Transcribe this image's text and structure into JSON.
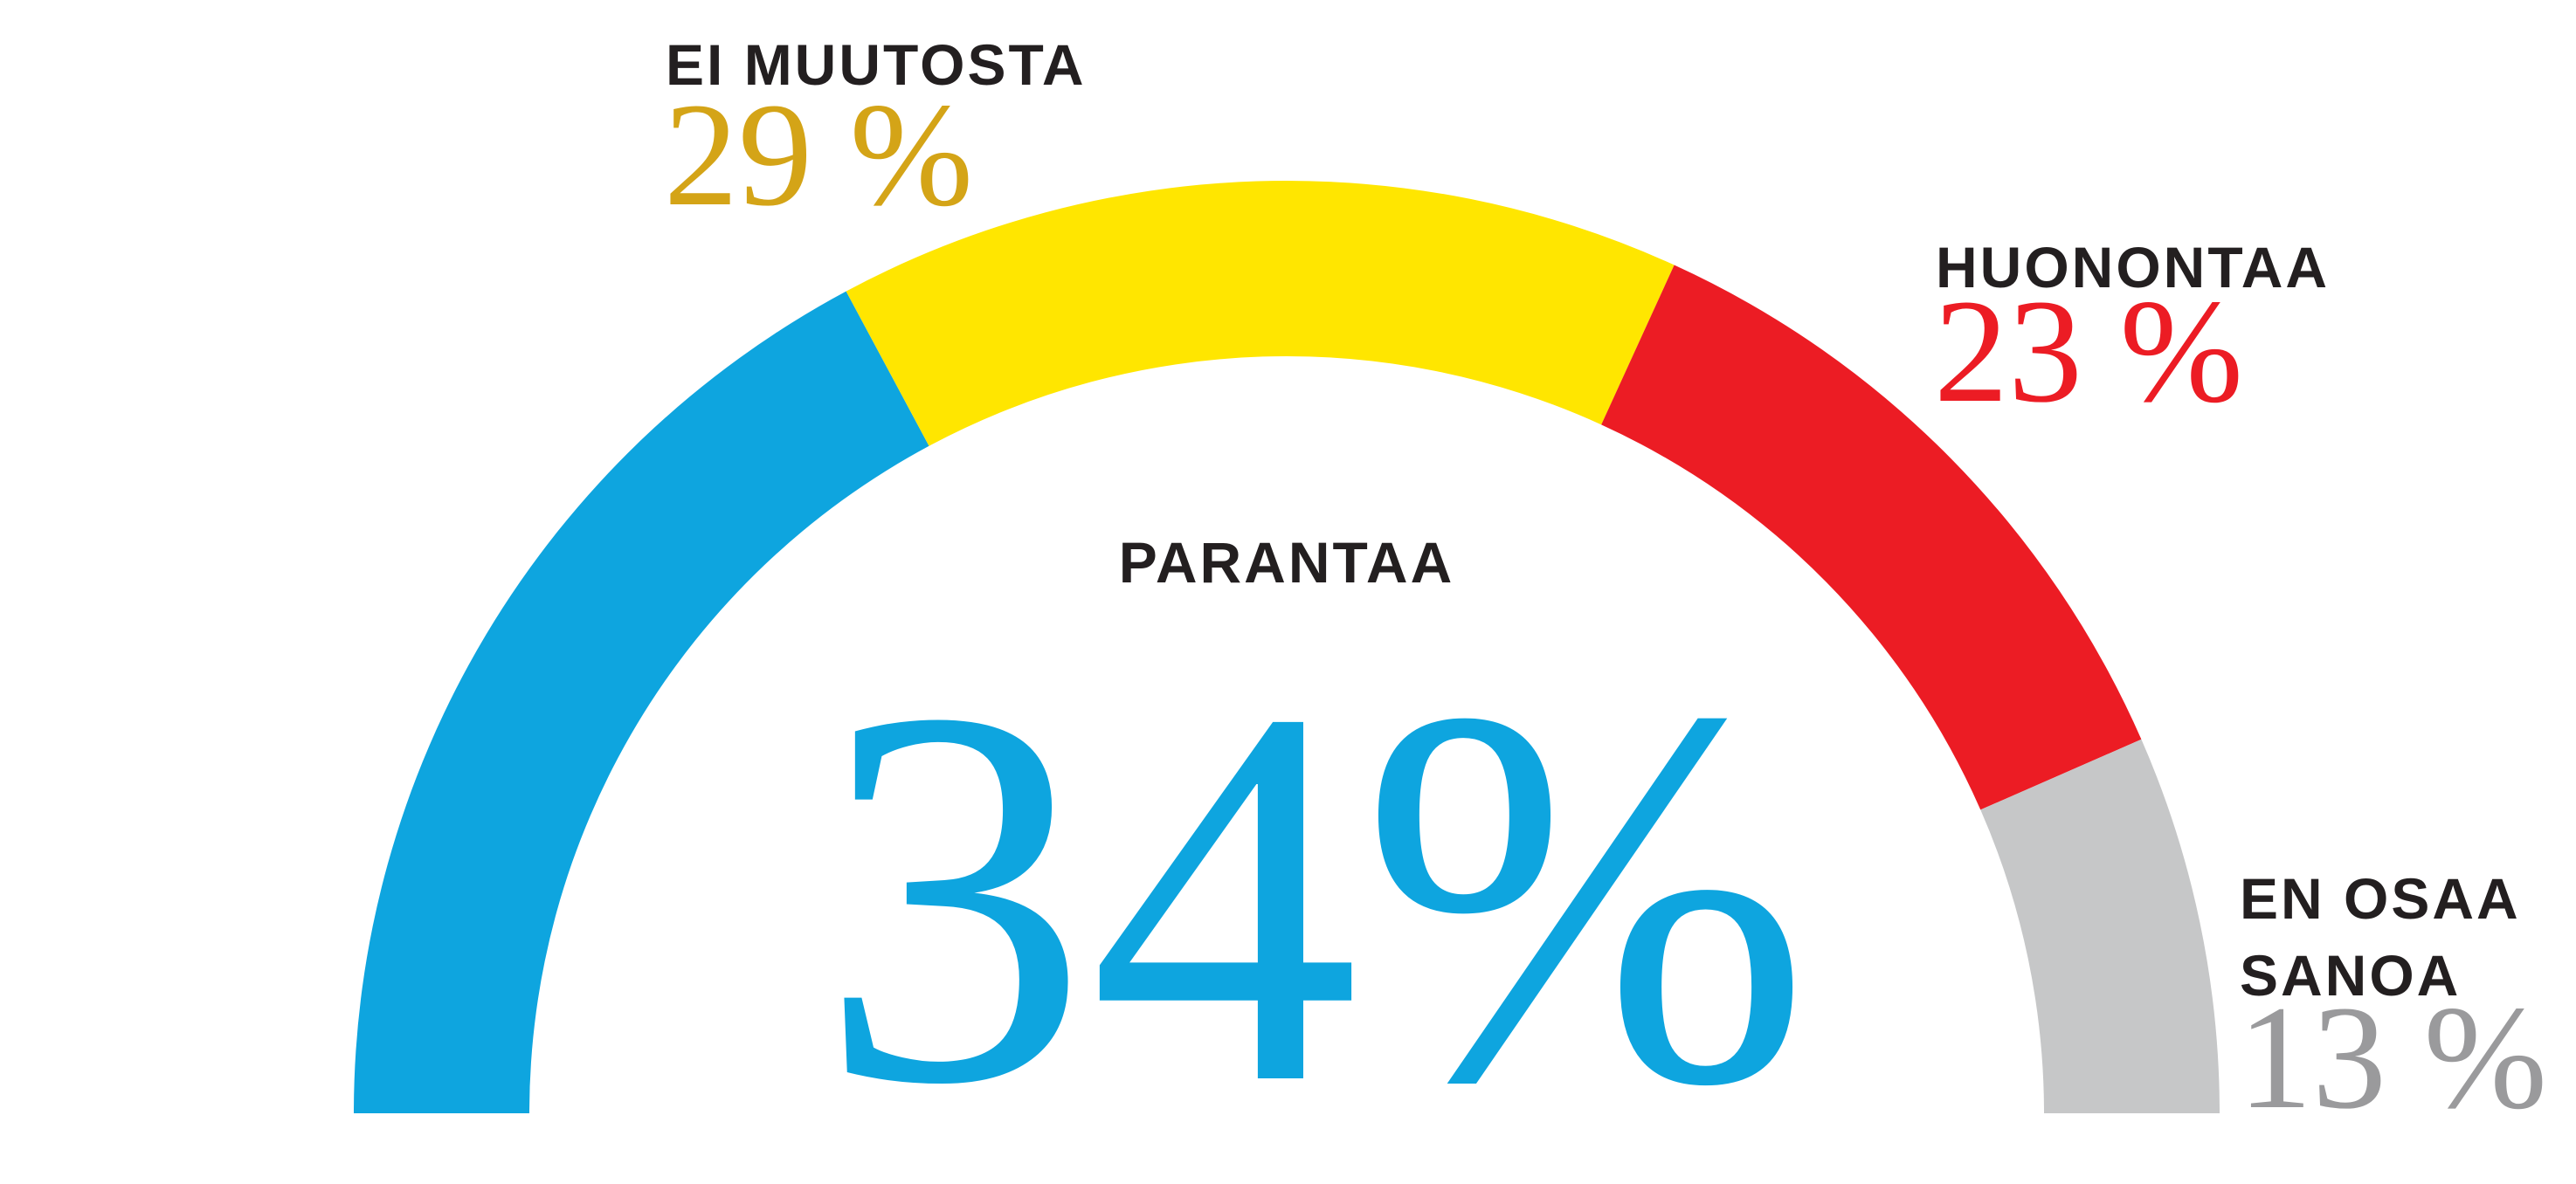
{
  "chart_data": {
    "type": "semi-donut",
    "categories": [
      "PARANTAA",
      "EI MUUTOSTA",
      "HUONONTAA",
      "EN OSAA SANOA"
    ],
    "values": [
      34,
      29,
      23,
      13
    ],
    "value_labels": [
      "34%",
      "29 %",
      "23 %",
      "13 %"
    ],
    "colors": [
      "#0ea5df",
      "#ffe600",
      "#ec1c24",
      "#c6c7c8"
    ],
    "label_colors": [
      "#0ea5df",
      "#d4a417",
      "#ec1c24",
      "#9a9a9c"
    ]
  }
}
